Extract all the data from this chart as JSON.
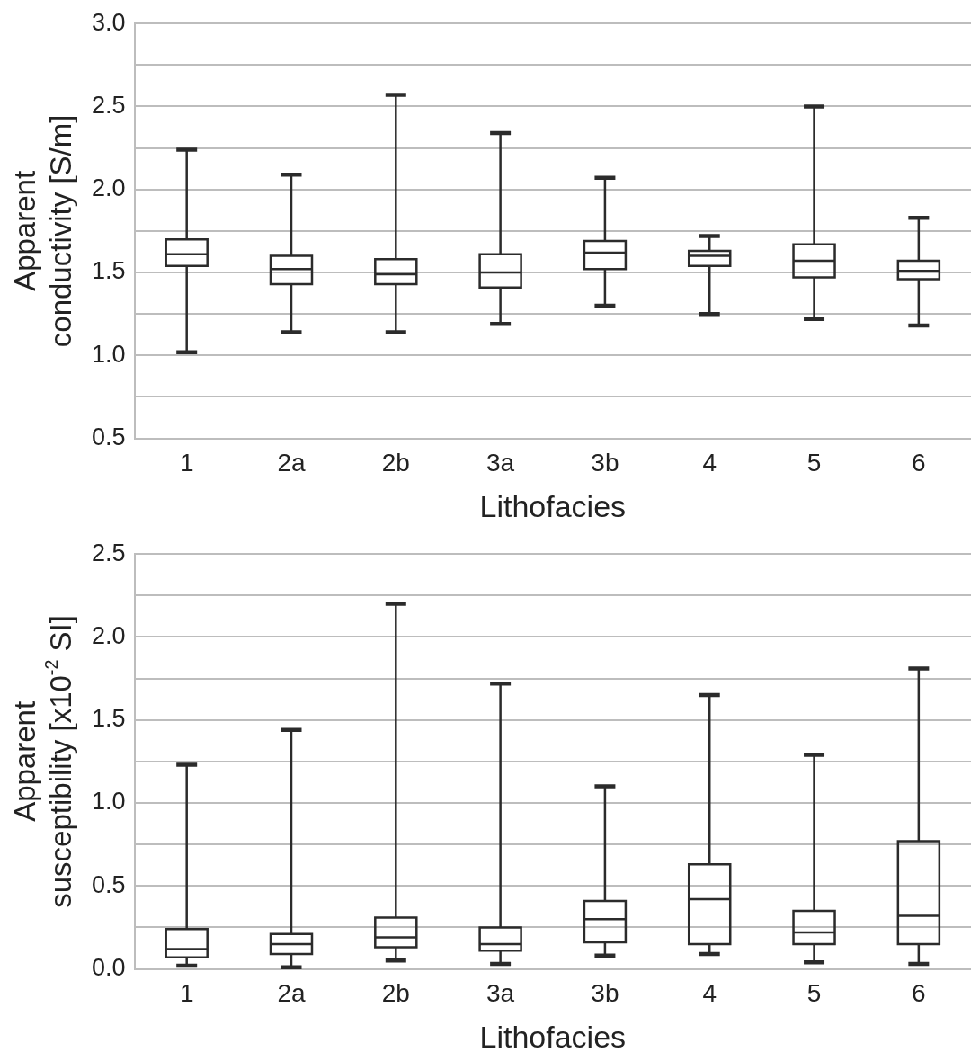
{
  "chart_data": [
    {
      "type": "box",
      "ylabel": "Apparent conductivity [S/m]",
      "xlabel": "Lithofacies",
      "categories": [
        "1",
        "2a",
        "2b",
        "3a",
        "3b",
        "4",
        "5",
        "6"
      ],
      "color": "#2b2b2b",
      "grid": "y",
      "ylim": [
        0.5,
        3.0
      ],
      "yticks": [
        0.5,
        {
          "value": 0.75,
          "label": null
        },
        {
          "value": 1.0,
          "label": "1.0"
        },
        {
          "value": 1.25,
          "label": null
        },
        1.5,
        {
          "value": 1.75,
          "label": null
        },
        {
          "value": 2.0,
          "label": "2.0"
        },
        {
          "value": 2.25,
          "label": null
        },
        2.5,
        {
          "value": 2.75,
          "label": null
        },
        {
          "value": 3.0,
          "label": "3.0"
        }
      ],
      "boxes": [
        {
          "low": 1.02,
          "q1": 1.54,
          "median": 1.61,
          "q3": 1.7,
          "high": 2.24
        },
        {
          "low": 1.14,
          "q1": 1.43,
          "median": 1.52,
          "q3": 1.6,
          "high": 2.09
        },
        {
          "low": 1.14,
          "q1": 1.43,
          "median": 1.49,
          "q3": 1.58,
          "high": 2.57
        },
        {
          "low": 1.19,
          "q1": 1.41,
          "median": 1.5,
          "q3": 1.61,
          "high": 2.34
        },
        {
          "low": 1.3,
          "q1": 1.52,
          "median": 1.62,
          "q3": 1.69,
          "high": 2.07
        },
        {
          "low": 1.25,
          "q1": 1.54,
          "median": 1.6,
          "q3": 1.63,
          "high": 1.72
        },
        {
          "low": 1.22,
          "q1": 1.47,
          "median": 1.57,
          "q3": 1.67,
          "high": 2.5
        },
        {
          "low": 1.18,
          "q1": 1.46,
          "median": 1.51,
          "q3": 1.57,
          "high": 1.83
        }
      ]
    },
    {
      "type": "box",
      "ylabel": "Apparent susceptibility [x10$^{-2}$ SI]",
      "xlabel": "Lithofacies",
      "categories": [
        "1",
        "2a",
        "2b",
        "3a",
        "3b",
        "4",
        "5",
        "6"
      ],
      "color": "#2b2b2b",
      "grid": "y",
      "ylim": [
        0.0,
        2.5
      ],
      "yticks": [
        {
          "value": 0.0,
          "label": "0.0"
        },
        {
          "value": 0.25,
          "label": null
        },
        0.5,
        {
          "value": 0.75,
          "label": null
        },
        {
          "value": 1.0,
          "label": "1.0"
        },
        {
          "value": 1.25,
          "label": null
        },
        1.5,
        {
          "value": 1.75,
          "label": null
        },
        {
          "value": 2.0,
          "label": "2.0"
        },
        {
          "value": 2.25,
          "label": null
        },
        2.5
      ],
      "boxes": [
        {
          "low": 0.02,
          "q1": 0.07,
          "median": 0.12,
          "q3": 0.24,
          "high": 1.23
        },
        {
          "low": 0.01,
          "q1": 0.09,
          "median": 0.15,
          "q3": 0.21,
          "high": 1.44
        },
        {
          "low": 0.05,
          "q1": 0.13,
          "median": 0.19,
          "q3": 0.31,
          "high": 2.2
        },
        {
          "low": 0.03,
          "q1": 0.11,
          "median": 0.15,
          "q3": 0.25,
          "high": 1.72
        },
        {
          "low": 0.08,
          "q1": 0.16,
          "median": 0.3,
          "q3": 0.41,
          "high": 1.1
        },
        {
          "low": 0.09,
          "q1": 0.15,
          "median": 0.42,
          "q3": 0.63,
          "high": 1.65
        },
        {
          "low": 0.04,
          "q1": 0.15,
          "median": 0.22,
          "q3": 0.35,
          "high": 1.29
        },
        {
          "low": 0.03,
          "q1": 0.15,
          "median": 0.32,
          "q3": 0.77,
          "high": 1.81
        }
      ]
    }
  ]
}
